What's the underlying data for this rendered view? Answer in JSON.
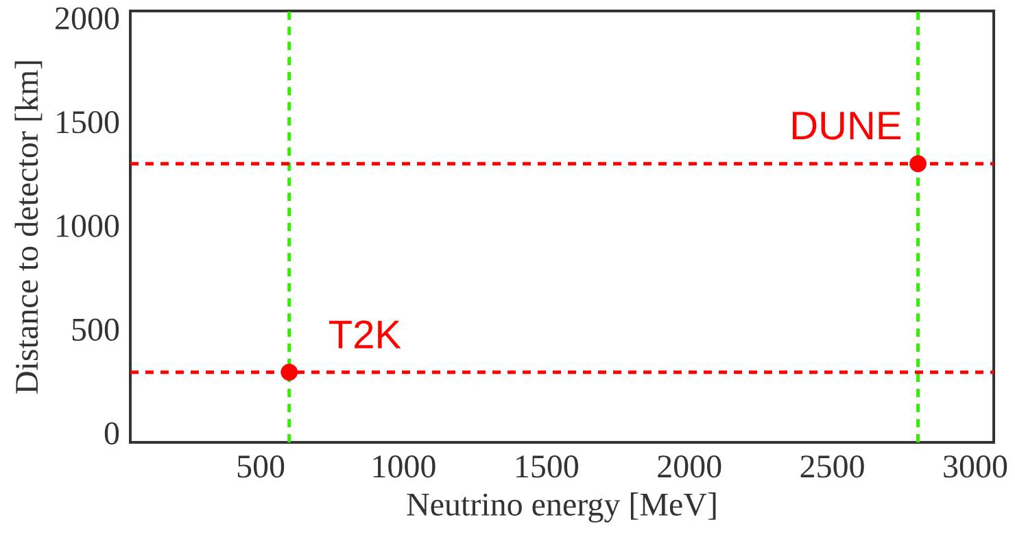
{
  "chart_data": {
    "type": "scatter",
    "xlabel": "Neutrino energy [MeV]",
    "ylabel": "Distance to detector [km]",
    "x": [
      600,
      2800
    ],
    "values": [
      295,
      1300
    ],
    "color": "#ff0000",
    "marker": "circle",
    "xlim": [
      44,
      3065
    ],
    "ylim": [
      -43,
      2036
    ],
    "xticks": [
      500,
      1000,
      1500,
      2000,
      2500,
      3000
    ],
    "yticks": [
      0,
      500,
      1000,
      1500,
      2000
    ],
    "ref_lines": [
      {
        "axis": "x",
        "value": 600,
        "color": "#33ee00",
        "line_style": "dashed"
      },
      {
        "axis": "x",
        "value": 2800,
        "color": "#33ee00",
        "line_style": "dashed"
      },
      {
        "axis": "y",
        "value": 295,
        "color": "#ff0000",
        "line_style": "dashed"
      },
      {
        "axis": "y",
        "value": 1300,
        "color": "#ff0000",
        "line_style": "dashed"
      }
    ],
    "annotations": [
      {
        "text": "T2K",
        "x": 600,
        "y": 295
      },
      {
        "text": "DUNE",
        "x": 2800,
        "y": 1300
      }
    ]
  }
}
